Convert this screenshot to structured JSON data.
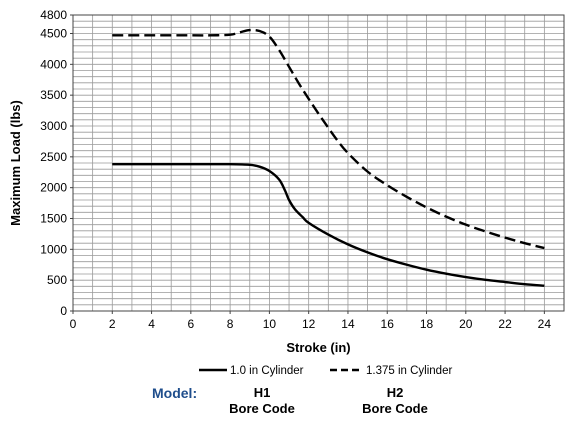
{
  "chart_data": {
    "type": "line",
    "title": "",
    "xlabel": "Stroke (in)",
    "ylabel": "Maximum Load (lbs)",
    "xlim": [
      0,
      25
    ],
    "ylim": [
      0,
      4800
    ],
    "xticks": [
      0,
      2,
      4,
      6,
      8,
      10,
      12,
      14,
      16,
      18,
      20,
      22,
      24
    ],
    "yticks": [
      0,
      500,
      1000,
      1500,
      2000,
      2500,
      3000,
      3500,
      4000,
      4500,
      4800
    ],
    "grid": true,
    "legend_position": "bottom",
    "series": [
      {
        "name": "1.0 in Cylinder",
        "style": "solid",
        "x": [
          2,
          4,
          6,
          8,
          9,
          9.5,
          10,
          10.5,
          10.8,
          11,
          11.3,
          11.7,
          12,
          13,
          14,
          15,
          16,
          17,
          18,
          19,
          20,
          21,
          22,
          23,
          24
        ],
        "y": [
          2380,
          2380,
          2380,
          2380,
          2370,
          2340,
          2270,
          2130,
          1950,
          1800,
          1650,
          1520,
          1430,
          1240,
          1080,
          950,
          840,
          750,
          670,
          605,
          550,
          505,
          470,
          435,
          410
        ]
      },
      {
        "name": "1.375 in Cylinder",
        "style": "dashed",
        "x": [
          2,
          4,
          6,
          7,
          8,
          8.5,
          9,
          9.5,
          10,
          10.5,
          11,
          11.5,
          12,
          12.5,
          13,
          13.5,
          14,
          15,
          16,
          17,
          18,
          19,
          20,
          21,
          22,
          23,
          24
        ],
        "y": [
          4470,
          4470,
          4470,
          4470,
          4480,
          4520,
          4555,
          4540,
          4450,
          4230,
          3960,
          3690,
          3440,
          3200,
          2970,
          2750,
          2560,
          2260,
          2040,
          1850,
          1680,
          1530,
          1400,
          1290,
          1190,
          1100,
          1020
        ]
      }
    ],
    "colors": {
      "line": "#000000",
      "grid": "#9a9a9a",
      "model": "#1f4e8c"
    }
  },
  "footer": {
    "model_label": "Model:",
    "codes": [
      {
        "code": "H1",
        "caption": "Bore Code"
      },
      {
        "code": "H2",
        "caption": "Bore Code"
      }
    ]
  }
}
